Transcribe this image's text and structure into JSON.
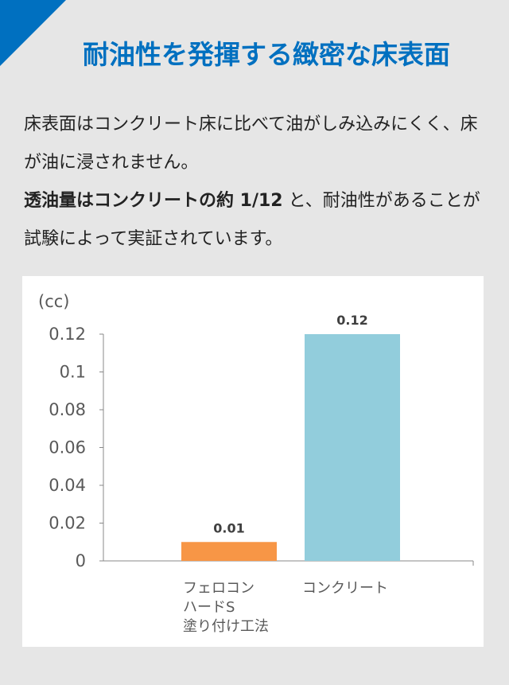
{
  "header": {
    "title": "耐油性を発揮する緻密な床表面",
    "accent_color": "#0070c0"
  },
  "body": {
    "line1": "床表面はコンクリート床に比べて油がしみ込みにくく、床が油に浸されません。",
    "bold": "透油量はコンクリートの約 1/12",
    "line2": " と、耐油性があることが試験によって実証されています。"
  },
  "chart_data": {
    "type": "bar",
    "ylabel": "(cc)",
    "ylim": [
      0,
      0.12
    ],
    "yticks": [
      "0",
      "0.02",
      "0.04",
      "0.06",
      "0.08",
      "0.1",
      "0.12"
    ],
    "categories": [
      [
        "フェロコン",
        "ハードS",
        "塗り付け工法"
      ],
      [
        "コンクリート"
      ]
    ],
    "values": [
      0.01,
      0.12
    ],
    "data_labels": [
      "0.01",
      "0.12"
    ],
    "colors": [
      "#f79646",
      "#92cddc"
    ],
    "grid": false
  }
}
